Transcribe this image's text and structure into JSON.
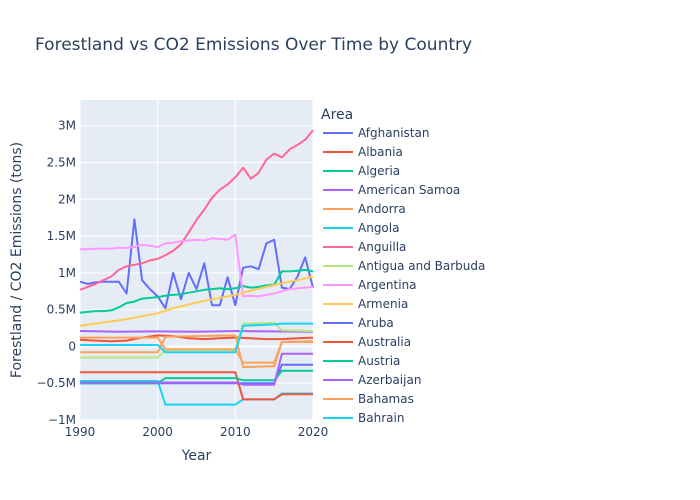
{
  "chart_data": {
    "type": "line",
    "title": "Forestland vs CO2 Emissions Over Time by Country",
    "xlabel": "Year",
    "ylabel": "Forestland / CO2 Emissions (tons)",
    "xlim": [
      1990,
      2020
    ],
    "ylim": [
      -1000000,
      3350000
    ],
    "x_ticks": [
      1990,
      2000,
      2010,
      2020
    ],
    "y_ticks": [
      {
        "value": -1000000,
        "label": "−1M"
      },
      {
        "value": -500000,
        "label": "−0.5M"
      },
      {
        "value": 0,
        "label": "0"
      },
      {
        "value": 500000,
        "label": "0.5M"
      },
      {
        "value": 1000000,
        "label": "1M"
      },
      {
        "value": 1500000,
        "label": "1.5M"
      },
      {
        "value": 2000000,
        "label": "2M"
      },
      {
        "value": 2500000,
        "label": "2.5M"
      },
      {
        "value": 3000000,
        "label": "3M"
      }
    ],
    "grid": true,
    "legend_position": "right",
    "legend_title": "Area",
    "series": [
      {
        "name": "Afghanistan",
        "color": "#636efa",
        "x": [
          1990,
          1991,
          1992,
          1993,
          1994,
          1995,
          1996,
          1997,
          1998,
          1999,
          2000,
          2001,
          2002,
          2003,
          2004,
          2005,
          2006,
          2007,
          2008,
          2009,
          2010,
          2011,
          2012,
          2013,
          2014,
          2015,
          2016,
          2017,
          2018,
          2019,
          2020
        ],
        "y": [
          880000,
          850000,
          870000,
          880000,
          880000,
          880000,
          720000,
          1730000,
          900000,
          780000,
          680000,
          520000,
          1000000,
          640000,
          1000000,
          780000,
          1130000,
          560000,
          560000,
          940000,
          560000,
          1070000,
          1090000,
          1050000,
          1400000,
          1450000,
          800000,
          780000,
          950000,
          1210000,
          800000
        ]
      },
      {
        "name": "Albania",
        "color": "#ef553b",
        "x": [
          1990,
          1992,
          1994,
          1996,
          1998,
          2000,
          2002,
          2004,
          2006,
          2008,
          2010,
          2012,
          2014,
          2016,
          2018,
          2020
        ],
        "y": [
          90000,
          80000,
          70000,
          80000,
          120000,
          150000,
          140000,
          110000,
          100000,
          110000,
          120000,
          110000,
          100000,
          100000,
          110000,
          120000
        ]
      },
      {
        "name": "Algeria",
        "color": "#00cc96",
        "x": [
          1990,
          1991,
          1992,
          1993,
          1994,
          1995,
          1996,
          1997,
          1998,
          1999,
          2000,
          2001,
          2002,
          2003,
          2004,
          2005,
          2006,
          2007,
          2008,
          2009,
          2010,
          2011,
          2012,
          2013,
          2014,
          2015,
          2016,
          2017,
          2018,
          2019,
          2020
        ],
        "y": [
          460000,
          470000,
          480000,
          480000,
          490000,
          530000,
          590000,
          610000,
          650000,
          660000,
          670000,
          690000,
          700000,
          710000,
          730000,
          750000,
          770000,
          780000,
          790000,
          780000,
          790000,
          820000,
          800000,
          810000,
          830000,
          840000,
          1020000,
          1020000,
          1030000,
          1040000,
          1020000
        ]
      },
      {
        "name": "American Samoa",
        "color": "#ab63fa",
        "x": [
          1990,
          1995,
          2000,
          2005,
          2010,
          2015,
          2020
        ],
        "y": [
          210000,
          200000,
          205000,
          200000,
          210000,
          205000,
          200000
        ]
      },
      {
        "name": "Andorra",
        "color": "#ffa15a",
        "x": [
          1990,
          1995,
          2000,
          2001,
          2005,
          2010,
          2011,
          2015,
          2016,
          2020
        ],
        "y": [
          -80000,
          -80000,
          -80000,
          130000,
          140000,
          150000,
          -280000,
          -270000,
          60000,
          70000
        ]
      },
      {
        "name": "Angola",
        "color": "#19d3f3",
        "x": [
          1990,
          1995,
          2000,
          2001,
          2005,
          2010,
          2011,
          2015,
          2016,
          2020
        ],
        "y": [
          -470000,
          -470000,
          -470000,
          -790000,
          -790000,
          -790000,
          -720000,
          -720000,
          -640000,
          -640000
        ]
      },
      {
        "name": "Anguilla",
        "color": "#ff6692",
        "x": [
          1990,
          1991,
          1992,
          1993,
          1994,
          1995,
          1996,
          1997,
          1998,
          1999,
          2000,
          2001,
          2002,
          2003,
          2004,
          2005,
          2006,
          2007,
          2008,
          2009,
          2010,
          2011,
          2012,
          2013,
          2014,
          2015,
          2016,
          2017,
          2018,
          2019,
          2020
        ],
        "y": [
          770000,
          810000,
          850000,
          900000,
          950000,
          1040000,
          1090000,
          1110000,
          1130000,
          1170000,
          1190000,
          1240000,
          1300000,
          1390000,
          1550000,
          1720000,
          1860000,
          2020000,
          2130000,
          2200000,
          2300000,
          2430000,
          2280000,
          2360000,
          2540000,
          2620000,
          2570000,
          2680000,
          2740000,
          2810000,
          2940000
        ]
      },
      {
        "name": "Antigua and Barbuda",
        "color": "#b6e880",
        "x": [
          1990,
          1995,
          2000,
          2001,
          2005,
          2010,
          2011,
          2015,
          2016,
          2020
        ],
        "y": [
          -150000,
          -150000,
          -150000,
          -50000,
          -50000,
          -50000,
          310000,
          320000,
          220000,
          210000
        ]
      },
      {
        "name": "Argentina",
        "color": "#ff97ff",
        "x": [
          1990,
          1991,
          1992,
          1993,
          1994,
          1995,
          1996,
          1997,
          1998,
          1999,
          2000,
          2001,
          2002,
          2003,
          2004,
          2005,
          2006,
          2007,
          2008,
          2009,
          2010,
          2011,
          2012,
          2013,
          2014,
          2015,
          2016,
          2017,
          2018,
          2019,
          2020
        ],
        "y": [
          1320000,
          1320000,
          1330000,
          1330000,
          1330000,
          1340000,
          1340000,
          1350000,
          1380000,
          1370000,
          1350000,
          1400000,
          1410000,
          1430000,
          1440000,
          1450000,
          1440000,
          1470000,
          1460000,
          1450000,
          1520000,
          680000,
          690000,
          680000,
          700000,
          720000,
          750000,
          780000,
          790000,
          800000,
          810000
        ]
      },
      {
        "name": "Armenia",
        "color": "#fecb52",
        "x": [
          1990,
          1992,
          1994,
          1996,
          1998,
          2000,
          2002,
          2004,
          2006,
          2008,
          2010,
          2012,
          2014,
          2016,
          2018,
          2020
        ],
        "y": [
          280000,
          310000,
          340000,
          370000,
          410000,
          450000,
          520000,
          570000,
          620000,
          660000,
          700000,
          760000,
          810000,
          860000,
          900000,
          950000
        ]
      },
      {
        "name": "Aruba",
        "color": "#636efa",
        "x": [
          1990,
          1995,
          2000,
          2005,
          2010,
          2011,
          2015,
          2016,
          2020
        ],
        "y": [
          -500000,
          -500000,
          -500000,
          -500000,
          -500000,
          -500000,
          -500000,
          -250000,
          -250000
        ]
      },
      {
        "name": "Australia",
        "color": "#ef553b",
        "x": [
          1990,
          1995,
          2000,
          2001,
          2005,
          2010,
          2011,
          2015,
          2016,
          2020
        ],
        "y": [
          -350000,
          -350000,
          -350000,
          -350000,
          -350000,
          -350000,
          -720000,
          -720000,
          -650000,
          -650000
        ]
      },
      {
        "name": "Austria",
        "color": "#00cc96",
        "x": [
          1990,
          1995,
          2000,
          2001,
          2005,
          2010,
          2011,
          2015,
          2016,
          2020
        ],
        "y": [
          -500000,
          -500000,
          -500000,
          -430000,
          -430000,
          -430000,
          -460000,
          -460000,
          -330000,
          -330000
        ]
      },
      {
        "name": "Azerbaijan",
        "color": "#ab63fa",
        "x": [
          1990,
          1995,
          2000,
          2001,
          2005,
          2010,
          2011,
          2015,
          2016,
          2020
        ],
        "y": [
          -490000,
          -490000,
          -490000,
          -490000,
          -490000,
          -490000,
          -520000,
          -520000,
          -100000,
          -100000
        ]
      },
      {
        "name": "Bahamas",
        "color": "#ffa15a",
        "x": [
          1990,
          1995,
          2000,
          2001,
          2005,
          2010,
          2011,
          2015,
          2016,
          2020
        ],
        "y": [
          120000,
          120000,
          120000,
          -40000,
          -40000,
          -40000,
          -220000,
          -220000,
          60000,
          60000
        ]
      },
      {
        "name": "Bahrain",
        "color": "#19d3f3",
        "x": [
          1990,
          1995,
          2000,
          2001,
          2005,
          2010,
          2011,
          2015,
          2016,
          2020
        ],
        "y": [
          20000,
          20000,
          20000,
          -80000,
          -80000,
          -80000,
          280000,
          300000,
          310000,
          310000
        ]
      }
    ]
  }
}
